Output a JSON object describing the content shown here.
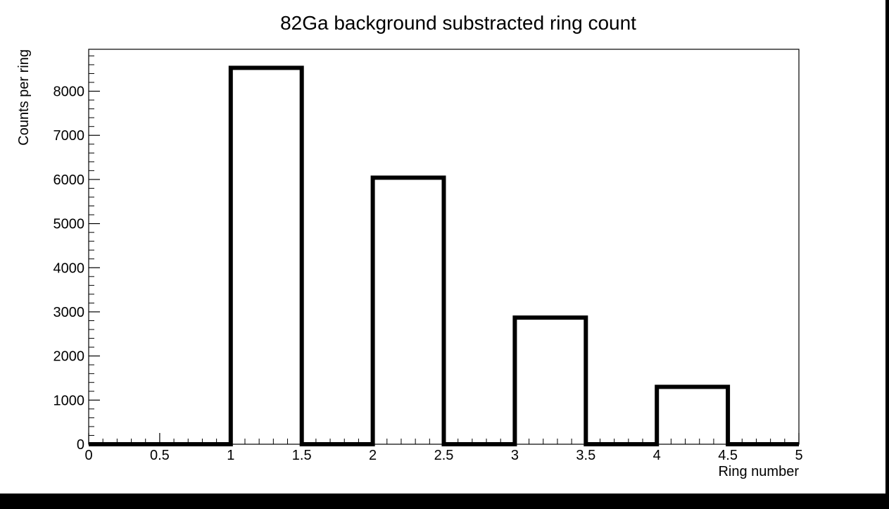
{
  "chart_data": {
    "type": "bar",
    "title": "82Ga background substracted ring count",
    "xlabel": "Ring number",
    "ylabel": "Counts per ring",
    "xlim": [
      0,
      5
    ],
    "ylim": [
      0,
      8950
    ],
    "bin_width": 0.5,
    "bin_edges": [
      0,
      0.5,
      1,
      1.5,
      2,
      2.5,
      3,
      3.5,
      4,
      4.5,
      5
    ],
    "values": [
      0,
      0,
      8530,
      0,
      6040,
      0,
      2870,
      0,
      1300,
      0
    ],
    "x_ticks": [
      "0",
      "0.5",
      "1",
      "1.5",
      "2",
      "2.5",
      "3",
      "3.5",
      "4",
      "4.5",
      "5"
    ],
    "y_ticks": [
      "0",
      "1000",
      "2000",
      "3000",
      "4000",
      "5000",
      "6000",
      "7000",
      "8000"
    ],
    "grid": false,
    "legend": "none",
    "colors": {
      "line": "#000000",
      "background": "#ffffff"
    }
  }
}
